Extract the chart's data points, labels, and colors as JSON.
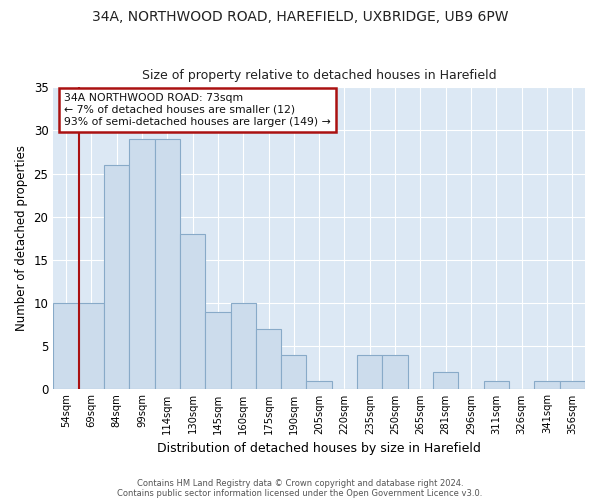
{
  "title1": "34A, NORTHWOOD ROAD, HAREFIELD, UXBRIDGE, UB9 6PW",
  "title2": "Size of property relative to detached houses in Harefield",
  "xlabel": "Distribution of detached houses by size in Harefield",
  "ylabel": "Number of detached properties",
  "bin_labels": [
    "54sqm",
    "69sqm",
    "84sqm",
    "99sqm",
    "114sqm",
    "130sqm",
    "145sqm",
    "160sqm",
    "175sqm",
    "190sqm",
    "205sqm",
    "220sqm",
    "235sqm",
    "250sqm",
    "265sqm",
    "281sqm",
    "296sqm",
    "311sqm",
    "326sqm",
    "341sqm",
    "356sqm"
  ],
  "bar_values": [
    10,
    10,
    26,
    29,
    29,
    18,
    9,
    10,
    7,
    4,
    1,
    0,
    4,
    4,
    0,
    2,
    0,
    1,
    0,
    1,
    1
  ],
  "bar_color": "#ccdcec",
  "bar_edge_color": "#88aac8",
  "ylim": [
    0,
    35
  ],
  "yticks": [
    0,
    5,
    10,
    15,
    20,
    25,
    30,
    35
  ],
  "property_line_color": "#aa1111",
  "annotation_box_text": "34A NORTHWOOD ROAD: 73sqm\n← 7% of detached houses are smaller (12)\n93% of semi-detached houses are larger (149) →",
  "annotation_box_edge_color": "#aa1111",
  "footer1": "Contains HM Land Registry data © Crown copyright and database right 2024.",
  "footer2": "Contains public sector information licensed under the Open Government Licence v3.0.",
  "fig_bg": "#ffffff",
  "plot_bg": "#dce8f4"
}
